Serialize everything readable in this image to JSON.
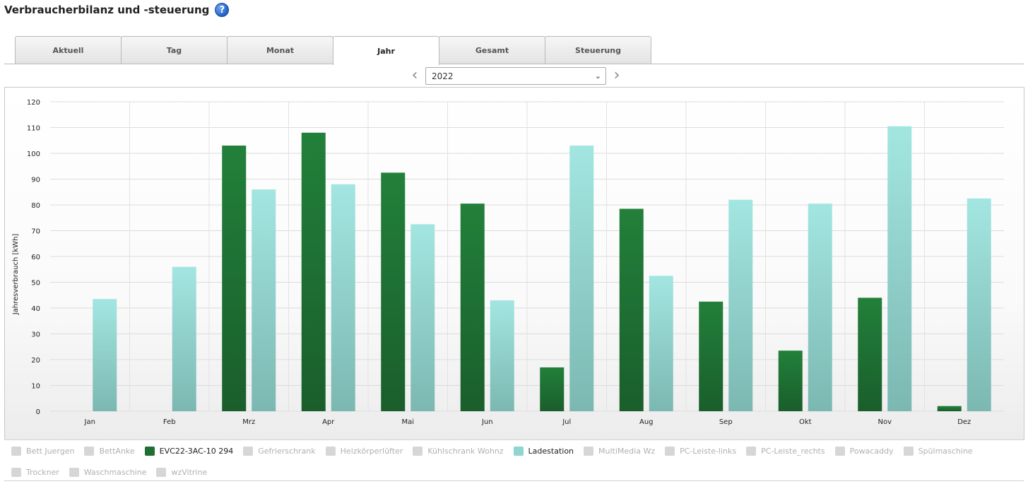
{
  "header": {
    "title": "Verbraucherbilanz und -steuerung",
    "help_icon": "question-circle-icon"
  },
  "tabs": [
    {
      "label": "Aktuell",
      "active": false
    },
    {
      "label": "Tag",
      "active": false
    },
    {
      "label": "Monat",
      "active": false
    },
    {
      "label": "Jahr",
      "active": true
    },
    {
      "label": "Gesamt",
      "active": false
    },
    {
      "label": "Steuerung",
      "active": false
    }
  ],
  "year_selector": {
    "value": "2022",
    "prev_icon": "chevron-left-icon",
    "next_icon": "chevron-right-icon",
    "dropdown_icon": "chevron-down-icon"
  },
  "chart_data": {
    "type": "bar",
    "title": "",
    "xlabel": "",
    "ylabel": "Jahresverbrauch [kWh]",
    "ylim": [
      0,
      120
    ],
    "yticks": [
      0,
      10,
      20,
      30,
      40,
      50,
      60,
      70,
      80,
      90,
      100,
      110,
      120
    ],
    "grid": true,
    "categories": [
      "Jan",
      "Feb",
      "Mrz",
      "Apr",
      "Mai",
      "Jun",
      "Jul",
      "Aug",
      "Sep",
      "Okt",
      "Nov",
      "Dez"
    ],
    "series": [
      {
        "name": "EVC22-3AC-10 294",
        "color": "#1e6f32",
        "values": [
          0,
          0,
          103,
          108,
          92.5,
          80.5,
          17,
          78.5,
          42.5,
          23.5,
          44,
          2
        ]
      },
      {
        "name": "Ladestation",
        "color": "#8fd6d0",
        "values": [
          43.5,
          56,
          86,
          88,
          72.5,
          43,
          103,
          52.5,
          82,
          80.5,
          110.5,
          82.5
        ]
      }
    ]
  },
  "legend": {
    "placement": "bottom",
    "items": [
      {
        "label": "Bett Juergen",
        "active": false
      },
      {
        "label": "BettAnke",
        "active": false
      },
      {
        "label": "EVC22-3AC-10 294",
        "active": true,
        "color": "#1e6f32"
      },
      {
        "label": "Gefrierschrank",
        "active": false
      },
      {
        "label": "Heizkörperlüfter",
        "active": false
      },
      {
        "label": "Kühlschrank Wohnz",
        "active": false
      },
      {
        "label": "Ladestation",
        "active": true,
        "color": "#8fd6d0"
      },
      {
        "label": "MultiMedia Wz",
        "active": false
      },
      {
        "label": "PC-Leiste-links",
        "active": false
      },
      {
        "label": "PC-Leiste_rechts",
        "active": false
      },
      {
        "label": "Powacaddy",
        "active": false
      },
      {
        "label": "Spülmaschine",
        "active": false
      },
      {
        "label": "Trockner",
        "active": false
      },
      {
        "label": "Waschmaschine",
        "active": false
      },
      {
        "label": "wzVitrine",
        "active": false
      }
    ]
  }
}
